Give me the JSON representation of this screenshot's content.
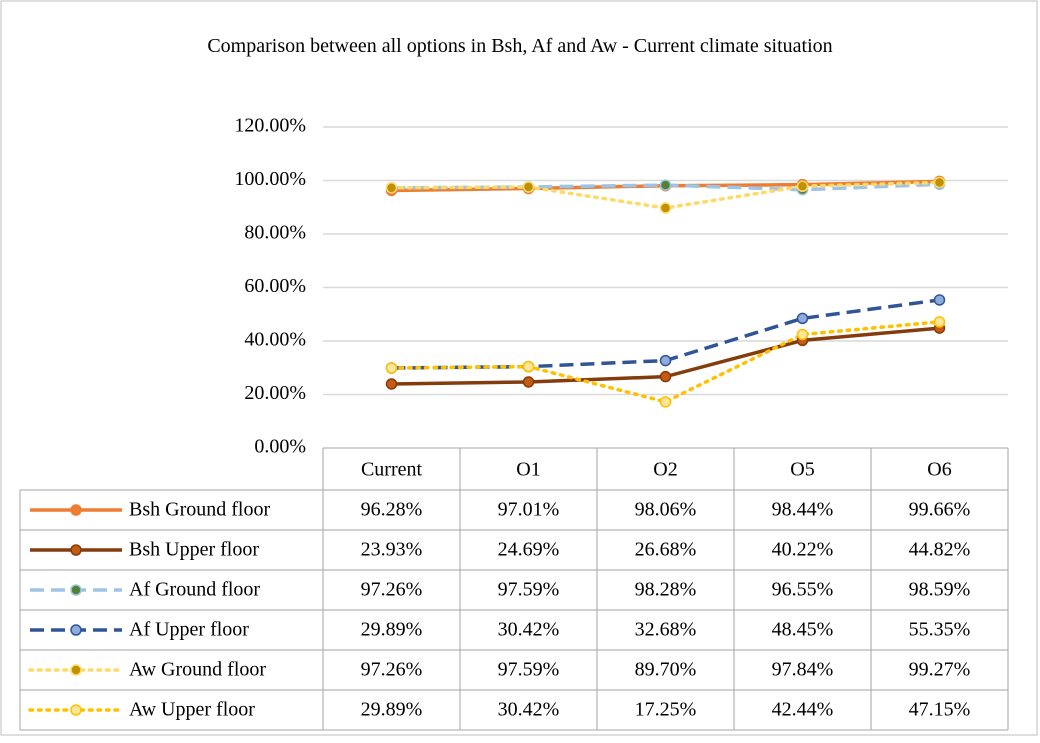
{
  "chart_data": {
    "type": "line",
    "title": "Comparison between all options in Bsh, Af and Aw - Current climate situation",
    "categories": [
      "Current",
      "O1",
      "O2",
      "O5",
      "O6"
    ],
    "ylim": [
      0,
      120
    ],
    "yticks": [
      {
        "value": 0,
        "label": "0.00%"
      },
      {
        "value": 20,
        "label": "20.00%"
      },
      {
        "value": 40,
        "label": "40.00%"
      },
      {
        "value": 60,
        "label": "60.00%"
      },
      {
        "value": 80,
        "label": "80.00%"
      },
      {
        "value": 100,
        "label": "100.00%"
      },
      {
        "value": 120,
        "label": "120.00%"
      }
    ],
    "grid": true,
    "series": [
      {
        "name": "Bsh Ground floor",
        "color": "#ED7D31",
        "marker_fill": "#ED7D31",
        "dash": "solid",
        "values": [
          96.28,
          97.01,
          98.06,
          98.44,
          99.66
        ],
        "value_labels": [
          "96.28%",
          "97.01%",
          "98.06%",
          "98.44%",
          "99.66%"
        ]
      },
      {
        "name": "Bsh Upper floor",
        "color": "#843C0C",
        "marker_fill": "#C55A11",
        "dash": "solid",
        "values": [
          23.93,
          24.69,
          26.68,
          40.22,
          44.82
        ],
        "value_labels": [
          "23.93%",
          "24.69%",
          "26.68%",
          "40.22%",
          "44.82%"
        ]
      },
      {
        "name": "Af Ground floor",
        "color": "#9DC3E6",
        "marker_fill": "#548235",
        "dash": "dashed",
        "values": [
          97.26,
          97.59,
          98.28,
          96.55,
          98.59
        ],
        "value_labels": [
          "97.26%",
          "97.59%",
          "98.28%",
          "96.55%",
          "98.59%"
        ]
      },
      {
        "name": "Af Upper floor",
        "color": "#2F5597",
        "marker_fill": "#8FAADC",
        "dash": "dashed",
        "values": [
          29.89,
          30.42,
          32.68,
          48.45,
          55.35
        ],
        "value_labels": [
          "29.89%",
          "30.42%",
          "32.68%",
          "48.45%",
          "55.35%"
        ]
      },
      {
        "name": "Aw Ground floor",
        "color": "#FFD966",
        "marker_fill": "#BF9000",
        "dash": "dotted",
        "values": [
          97.26,
          97.59,
          89.7,
          97.84,
          99.27
        ],
        "value_labels": [
          "97.26%",
          "97.59%",
          "89.70%",
          "97.84%",
          "99.27%"
        ]
      },
      {
        "name": "Aw Upper floor",
        "color": "#FFC000",
        "marker_fill": "#FFE699",
        "dash": "dotted",
        "values": [
          29.89,
          30.42,
          17.25,
          42.44,
          47.15
        ],
        "value_labels": [
          "29.89%",
          "30.42%",
          "17.25%",
          "42.44%",
          "47.15%"
        ]
      }
    ]
  }
}
